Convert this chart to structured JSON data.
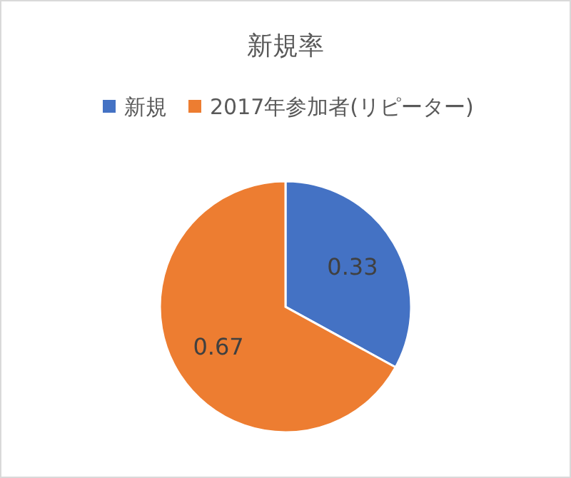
{
  "chart_data": {
    "type": "pie",
    "title": "新規率",
    "categories": [
      "新規",
      "2017年参加者(リピーター)"
    ],
    "values": [
      0.33,
      0.67
    ],
    "colors": [
      "#4472c4",
      "#ed7d31"
    ],
    "legend": "top",
    "data_labels": true
  }
}
